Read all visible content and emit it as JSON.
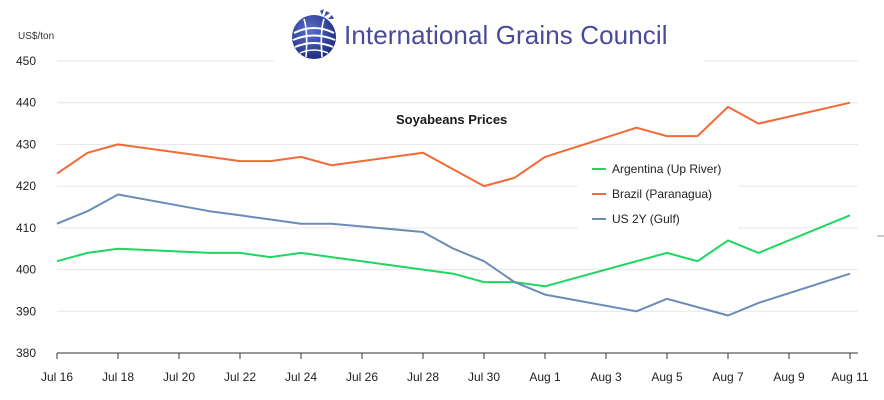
{
  "logo": {
    "text": "International Grains Council",
    "brand_color": "#4a4a9c",
    "icon": "globe-wheat-logo-icon"
  },
  "unit_label": "US$/ton",
  "chart_data": {
    "type": "line",
    "title": "Soyabeans Prices",
    "ylabel": "US$/ton",
    "xlabel": "",
    "ylim": [
      380,
      450
    ],
    "yticks": [
      380,
      390,
      400,
      410,
      420,
      430,
      440,
      450
    ],
    "x": [
      "Jul 16",
      "Jul 17",
      "Jul 18",
      "Jul 21",
      "Jul 22",
      "Jul 23",
      "Jul 24",
      "Jul 25",
      "Jul 28",
      "Jul 29",
      "Jul 30",
      "Jul 31",
      "Aug 1",
      "Aug 4",
      "Aug 5",
      "Aug 6",
      "Aug 7",
      "Aug 8",
      "Aug 11"
    ],
    "x_positions": [
      0,
      1,
      2,
      5,
      6,
      7,
      8,
      9,
      12,
      13,
      14,
      15,
      16,
      19,
      20,
      21,
      22,
      23,
      26
    ],
    "x_tick_labels": [
      "Jul 16",
      "Jul 18",
      "Jul 20",
      "Jul 22",
      "Jul 24",
      "Jul 26",
      "Jul 28",
      "Jul 30",
      "Aug 1",
      "Aug 3",
      "Aug 5",
      "Aug 7",
      "Aug 9",
      "Aug 11"
    ],
    "x_tick_positions": [
      0,
      2,
      4,
      6,
      8,
      10,
      12,
      14,
      16,
      18,
      20,
      22,
      24,
      26
    ],
    "grid": true,
    "legend_position": "right",
    "series": [
      {
        "name": "Argentina (Up River)",
        "color": "#1ed760",
        "values": [
          402,
          404,
          405,
          404,
          404,
          403,
          404,
          403,
          400,
          399,
          397,
          397,
          396,
          402,
          404,
          402,
          407,
          404,
          413
        ]
      },
      {
        "name": "Brazil (Paranagua)",
        "color": "#f26a35",
        "values": [
          423,
          428,
          430,
          427,
          426,
          426,
          427,
          425,
          428,
          424,
          420,
          422,
          427,
          434,
          432,
          432,
          439,
          435,
          440
        ]
      },
      {
        "name": "US 2Y (Gulf)",
        "color": "#6b8cb8",
        "values": [
          411,
          414,
          418,
          414,
          413,
          412,
          411,
          411,
          409,
          405,
          402,
          397,
          394,
          390,
          393,
          391,
          389,
          392,
          399
        ]
      }
    ]
  }
}
